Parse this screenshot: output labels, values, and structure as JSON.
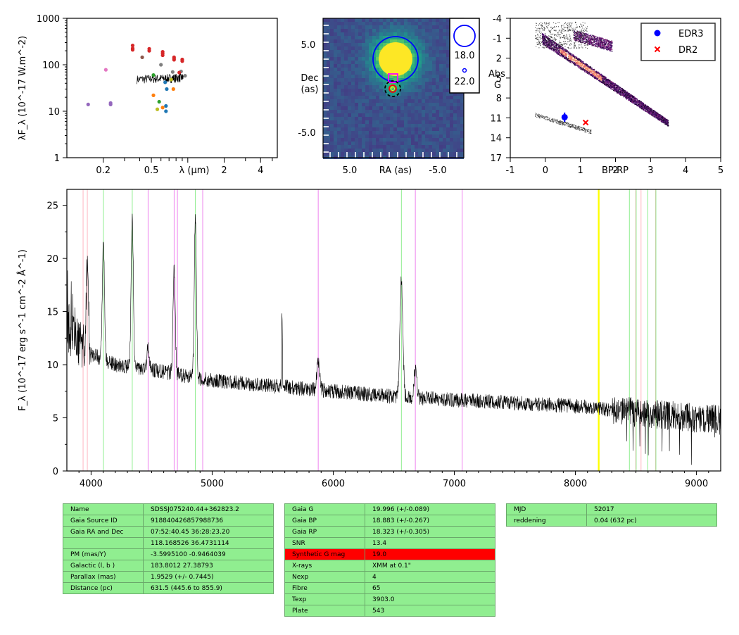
{
  "chart_data": [
    {
      "type": "scatter",
      "panel": "sed",
      "ylabel": "λF_λ (10^-17 W.m^-2)",
      "xlabel": "λ (μm)",
      "xscale": "log",
      "yscale": "log",
      "xlim": [
        0.1,
        5.5
      ],
      "ylim": [
        1,
        1000
      ],
      "x_ticklabels": [
        "0.2",
        "0.5",
        "2",
        "4"
      ],
      "y_ticklabels": [
        "1",
        "10",
        "100",
        "1000"
      ],
      "points": [
        {
          "x": 0.15,
          "y": 14,
          "color": "#9467bd"
        },
        {
          "x": 0.23,
          "y": 15,
          "color": "#9467bd"
        },
        {
          "x": 0.23,
          "y": 14,
          "color": "#9467bd"
        },
        {
          "x": 0.21,
          "y": 78,
          "color": "#e377c2"
        },
        {
          "x": 0.35,
          "y": 260,
          "color": "#d62728"
        },
        {
          "x": 0.35,
          "y": 225,
          "color": "#d62728"
        },
        {
          "x": 0.35,
          "y": 210,
          "color": "#d62728"
        },
        {
          "x": 0.48,
          "y": 220,
          "color": "#d62728"
        },
        {
          "x": 0.48,
          "y": 200,
          "color": "#d62728"
        },
        {
          "x": 0.62,
          "y": 190,
          "color": "#d62728"
        },
        {
          "x": 0.62,
          "y": 175,
          "color": "#d62728"
        },
        {
          "x": 0.62,
          "y": 160,
          "color": "#d62728"
        },
        {
          "x": 0.77,
          "y": 145,
          "color": "#d62728"
        },
        {
          "x": 0.77,
          "y": 135,
          "color": "#d62728"
        },
        {
          "x": 0.77,
          "y": 128,
          "color": "#d62728"
        },
        {
          "x": 0.9,
          "y": 130,
          "color": "#d62728"
        },
        {
          "x": 0.9,
          "y": 120,
          "color": "#d62728"
        },
        {
          "x": 0.42,
          "y": 145,
          "color": "#8c564b"
        },
        {
          "x": 0.6,
          "y": 100,
          "color": "#7f7f7f"
        },
        {
          "x": 0.75,
          "y": 70,
          "color": "#7f7f7f"
        },
        {
          "x": 0.88,
          "y": 72,
          "color": "#7f7f7f"
        },
        {
          "x": 0.95,
          "y": 58,
          "color": "#7f7f7f"
        },
        {
          "x": 0.85,
          "y": 68,
          "color": "#d62728"
        },
        {
          "x": 0.52,
          "y": 60,
          "color": "#2ca02c"
        },
        {
          "x": 0.73,
          "y": 48,
          "color": "#bcbd22"
        },
        {
          "x": 0.65,
          "y": 42,
          "color": "#1f77b4"
        },
        {
          "x": 0.67,
          "y": 30,
          "color": "#1f77b4"
        },
        {
          "x": 0.66,
          "y": 13,
          "color": "#1f77b4"
        },
        {
          "x": 0.66,
          "y": 10,
          "color": "#1f77b4"
        },
        {
          "x": 0.52,
          "y": 22,
          "color": "#ff7f0e"
        },
        {
          "x": 0.76,
          "y": 30,
          "color": "#ff7f0e"
        },
        {
          "x": 0.62,
          "y": 12,
          "color": "#ff7f0e"
        },
        {
          "x": 0.58,
          "y": 16,
          "color": "#2ca02c"
        },
        {
          "x": 0.56,
          "y": 11,
          "color": "#bcbd22"
        }
      ],
      "spectrum_x": [
        0.38,
        0.92
      ],
      "spectrum_y": [
        48,
        52
      ]
    },
    {
      "type": "heatmap",
      "panel": "image",
      "xlabel": "RA (as)",
      "ylabel": "Dec (as)",
      "x_ticklabels": [
        "5.0",
        "-5.0"
      ],
      "y_ticklabels": [
        "5.0",
        "-5.0"
      ],
      "legend_sizes": [
        "18.0",
        "22.0"
      ],
      "colormap": "viridis"
    },
    {
      "type": "scatter",
      "panel": "hr_diagram",
      "xlabel": "BP-RP",
      "ylabel": "Abs G",
      "xlim": [
        -1,
        5
      ],
      "ylim": [
        17,
        -4
      ],
      "x_ticklabels": [
        "-1",
        "0",
        "1",
        "2",
        "3",
        "4",
        "5"
      ],
      "y_ticklabels": [
        "-4",
        "-1",
        "2",
        "5",
        "8",
        "11",
        "14",
        "17"
      ],
      "series": [
        {
          "name": "EDR3",
          "x": [
            0.55
          ],
          "y": [
            10.9
          ],
          "yerr": [
            0.7
          ],
          "color": "#0000ff",
          "marker": "circle"
        },
        {
          "name": "DR2",
          "x": [
            1.15
          ],
          "y": [
            11.7
          ],
          "color": "#ff0000",
          "marker": "x"
        }
      ],
      "legend": "top-right"
    },
    {
      "type": "line",
      "panel": "spectrum",
      "xlabel": "",
      "ylabel": "F_λ (10^-17 erg s^-1 cm^-2 Å^-1)",
      "xlim": [
        3800,
        9200
      ],
      "ylim": [
        0,
        26.5
      ],
      "x_ticklabels": [
        "4000",
        "5000",
        "6000",
        "7000",
        "8000",
        "9000"
      ],
      "y_ticklabels": [
        "0",
        "5",
        "10",
        "15",
        "20",
        "25"
      ],
      "continuum": [
        [
          3800,
          13
        ],
        [
          3900,
          12
        ],
        [
          4000,
          11
        ],
        [
          4200,
          10
        ],
        [
          4500,
          9.5
        ],
        [
          5000,
          8.5
        ],
        [
          5500,
          8
        ],
        [
          6000,
          7.5
        ],
        [
          6500,
          7
        ],
        [
          7000,
          6.7
        ],
        [
          7500,
          6.4
        ],
        [
          8000,
          6.1
        ],
        [
          8500,
          5.5
        ],
        [
          9000,
          5
        ],
        [
          9200,
          4.8
        ]
      ],
      "emission_lines": [
        {
          "x": 3970,
          "h": 8
        },
        {
          "x": 4102,
          "h": 11
        },
        {
          "x": 4340,
          "h": 14
        },
        {
          "x": 4471,
          "h": 2
        },
        {
          "x": 4686,
          "h": 10
        },
        {
          "x": 4861,
          "h": 15
        },
        {
          "x": 5876,
          "h": 2.5
        },
        {
          "x": 6563,
          "h": 11
        },
        {
          "x": 6678,
          "h": 2.5
        },
        {
          "x": 5577,
          "h": 7
        }
      ],
      "vlines": [
        {
          "x": 3934,
          "color": "#ffb6c1"
        },
        {
          "x": 3969,
          "color": "#ffb6c1"
        },
        {
          "x": 4102,
          "color": "#90ee90"
        },
        {
          "x": 4340,
          "color": "#90ee90"
        },
        {
          "x": 4471,
          "color": "#ee82ee"
        },
        {
          "x": 4686,
          "color": "#ee82ee"
        },
        {
          "x": 4713,
          "color": "#ee82ee"
        },
        {
          "x": 4861,
          "color": "#90ee90"
        },
        {
          "x": 4922,
          "color": "#ee82ee"
        },
        {
          "x": 5876,
          "color": "#ee82ee"
        },
        {
          "x": 6563,
          "color": "#90ee90"
        },
        {
          "x": 6678,
          "color": "#ee82ee"
        },
        {
          "x": 7065,
          "color": "#ee82ee"
        },
        {
          "x": 8190,
          "color": "#ffff00"
        },
        {
          "x": 8195,
          "color": "#ffff00"
        },
        {
          "x": 8446,
          "color": "#90ee90"
        },
        {
          "x": 8498,
          "color": "#ffb6c1"
        },
        {
          "x": 8502,
          "color": "#90ee90"
        },
        {
          "x": 8542,
          "color": "#ffb6c1"
        },
        {
          "x": 8598,
          "color": "#90ee90"
        },
        {
          "x": 8662,
          "color": "#ffb6c1"
        },
        {
          "x": 8665,
          "color": "#90ee90"
        }
      ]
    }
  ],
  "tables": {
    "left": [
      [
        "Name",
        "SDSSJ075240.44+362823.2"
      ],
      [
        "Gaia Source ID",
        "918840426857988736"
      ],
      [
        "Gaia RA and Dec",
        "07:52:40.45    36:28:23.20"
      ],
      [
        "",
        "118.168526    36.4731114"
      ],
      [
        "PM (mas/Y)",
        "-3.5995100    -0.9464039"
      ],
      [
        "Galactic (l, b )",
        "183.8012    27.38793"
      ],
      [
        "Parallax (mas)",
        "1.9529 (+/- 0.7445)"
      ],
      [
        "Distance (pc)",
        "631.5 (445.6 to 855.9)"
      ]
    ],
    "middle": [
      [
        "Gaia G",
        "19.996 (+/-0.089)"
      ],
      [
        "Gaia BP",
        "18.883 (+/-0.267)"
      ],
      [
        "Gaia RP",
        "18.323 (+/-0.305)"
      ],
      [
        "SNR",
        "13.4"
      ],
      [
        "Synthetic G mag",
        "19.0"
      ],
      [
        "X-rays",
        "XMM at 0.1\""
      ],
      [
        "Nexp",
        "4"
      ],
      [
        "Fibre",
        "65"
      ],
      [
        "Texp",
        "3903.0"
      ],
      [
        "Plate",
        "543"
      ]
    ],
    "right": [
      [
        "MJD",
        "52017"
      ],
      [
        "reddening",
        "0.04 (632 pc)"
      ]
    ]
  },
  "colors": {
    "highlight_row": "#ff0000",
    "table_bg": "#90ee90"
  }
}
